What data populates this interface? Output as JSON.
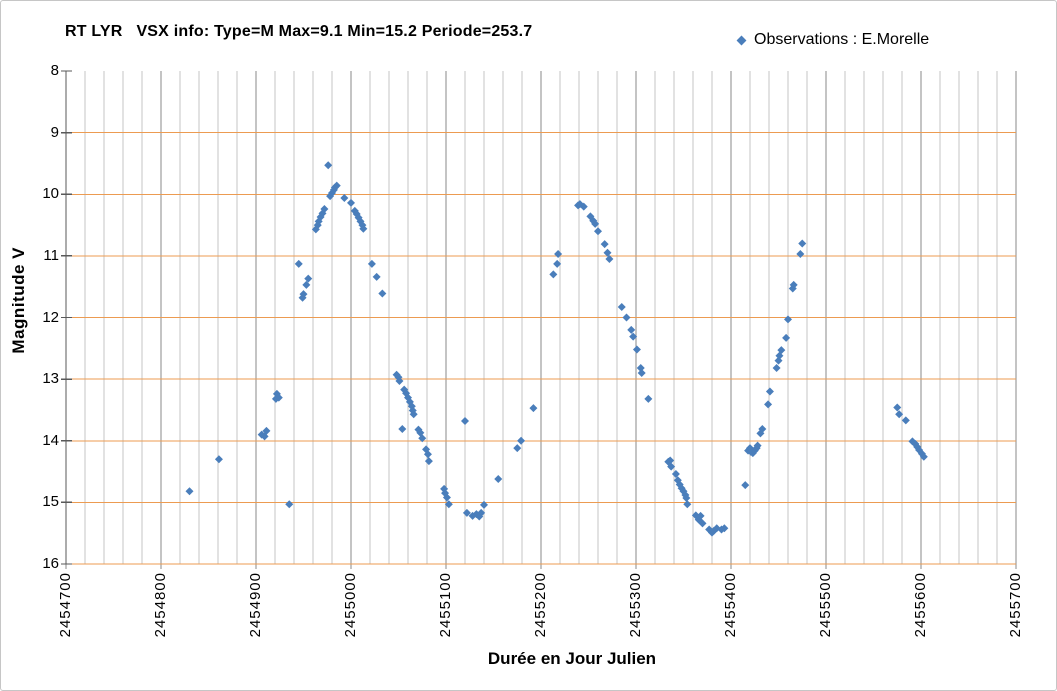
{
  "chart_data": {
    "type": "scatter",
    "title": "RT LYR   VSX info: Type=M Max=9.1 Min=15.2 Periode=253.7",
    "xlabel": "Durée en Jour Julien",
    "ylabel": "Magnitude V",
    "xlim": [
      2454700,
      2455700
    ],
    "ylim": [
      8,
      16
    ],
    "y_axis_direction": "down",
    "x_ticks": [
      2454700,
      2454800,
      2454900,
      2455000,
      2455100,
      2455200,
      2455300,
      2455400,
      2455500,
      2455600,
      2455700
    ],
    "x_minor_step": 20,
    "y_ticks": [
      8,
      9,
      10,
      11,
      12,
      13,
      14,
      15,
      16
    ],
    "grid": {
      "horizontal_color": "#ec9b51",
      "vertical_minor_color": "#c6c6c6",
      "vertical_major_color": "#8a8a8a",
      "axis_color": "#595959"
    },
    "legend": {
      "position": "top-right",
      "label": "Observations : E.Morelle"
    },
    "marker": {
      "shape": "diamond",
      "color": "#4a7ebb",
      "size": 8
    },
    "series": [
      {
        "name": "Observations : E.Morelle",
        "points": [
          [
            2454830,
            14.82
          ],
          [
            2454861,
            14.3
          ],
          [
            2454906,
            13.9
          ],
          [
            2454909,
            13.93
          ],
          [
            2454911,
            13.84
          ],
          [
            2454921,
            13.32
          ],
          [
            2454922,
            13.24
          ],
          [
            2454924,
            13.3
          ],
          [
            2454935,
            15.03
          ],
          [
            2454945,
            11.13
          ],
          [
            2454949,
            11.68
          ],
          [
            2454950,
            11.62
          ],
          [
            2454953,
            11.47
          ],
          [
            2454955,
            11.37
          ],
          [
            2454963,
            10.57
          ],
          [
            2454965,
            10.5
          ],
          [
            2454966,
            10.44
          ],
          [
            2454968,
            10.37
          ],
          [
            2454970,
            10.31
          ],
          [
            2454972,
            10.24
          ],
          [
            2454976,
            9.53
          ],
          [
            2454978,
            10.03
          ],
          [
            2454980,
            9.98
          ],
          [
            2454982,
            9.93
          ],
          [
            2454983,
            9.89
          ],
          [
            2454985,
            9.86
          ],
          [
            2454993,
            10.06
          ],
          [
            2455000,
            10.14
          ],
          [
            2455004,
            10.27
          ],
          [
            2455006,
            10.32
          ],
          [
            2455008,
            10.38
          ],
          [
            2455010,
            10.44
          ],
          [
            2455012,
            10.5
          ],
          [
            2455013,
            10.56
          ],
          [
            2455022,
            11.13
          ],
          [
            2455027,
            11.34
          ],
          [
            2455033,
            11.61
          ],
          [
            2455048,
            12.93
          ],
          [
            2455050,
            12.97
          ],
          [
            2455051,
            13.03
          ],
          [
            2455054,
            13.81
          ],
          [
            2455056,
            13.17
          ],
          [
            2455058,
            13.23
          ],
          [
            2455060,
            13.3
          ],
          [
            2455062,
            13.37
          ],
          [
            2455064,
            13.44
          ],
          [
            2455065,
            13.51
          ],
          [
            2455066,
            13.57
          ],
          [
            2455071,
            13.82
          ],
          [
            2455073,
            13.87
          ],
          [
            2455075,
            13.96
          ],
          [
            2455079,
            14.14
          ],
          [
            2455081,
            14.22
          ],
          [
            2455082,
            14.33
          ],
          [
            2455098,
            14.78
          ],
          [
            2455099,
            14.85
          ],
          [
            2455101,
            14.92
          ],
          [
            2455103,
            15.03
          ],
          [
            2455120,
            13.68
          ],
          [
            2455122,
            15.17
          ],
          [
            2455128,
            15.22
          ],
          [
            2455132,
            15.19
          ],
          [
            2455135,
            15.23
          ],
          [
            2455137,
            15.17
          ],
          [
            2455140,
            15.04
          ],
          [
            2455155,
            14.62
          ],
          [
            2455175,
            14.12
          ],
          [
            2455179,
            14.0
          ],
          [
            2455192,
            13.47
          ],
          [
            2455213,
            11.3
          ],
          [
            2455217,
            11.13
          ],
          [
            2455218,
            10.97
          ],
          [
            2455239,
            10.18
          ],
          [
            2455241,
            10.16
          ],
          [
            2455245,
            10.2
          ],
          [
            2455252,
            10.36
          ],
          [
            2455255,
            10.43
          ],
          [
            2455257,
            10.48
          ],
          [
            2455260,
            10.6
          ],
          [
            2455267,
            10.81
          ],
          [
            2455270,
            10.95
          ],
          [
            2455272,
            11.05
          ],
          [
            2455285,
            11.83
          ],
          [
            2455290,
            12.0
          ],
          [
            2455295,
            12.2
          ],
          [
            2455297,
            12.31
          ],
          [
            2455301,
            12.52
          ],
          [
            2455305,
            12.82
          ],
          [
            2455306,
            12.9
          ],
          [
            2455313,
            13.32
          ],
          [
            2455334,
            14.34
          ],
          [
            2455336,
            14.32
          ],
          [
            2455337,
            14.42
          ],
          [
            2455342,
            14.54
          ],
          [
            2455344,
            14.64
          ],
          [
            2455346,
            14.71
          ],
          [
            2455348,
            14.77
          ],
          [
            2455350,
            14.82
          ],
          [
            2455352,
            14.88
          ],
          [
            2455353,
            14.93
          ],
          [
            2455354,
            15.03
          ],
          [
            2455363,
            15.21
          ],
          [
            2455366,
            15.28
          ],
          [
            2455368,
            15.22
          ],
          [
            2455370,
            15.34
          ],
          [
            2455377,
            15.44
          ],
          [
            2455380,
            15.49
          ],
          [
            2455382,
            15.46
          ],
          [
            2455385,
            15.42
          ],
          [
            2455390,
            15.44
          ],
          [
            2455393,
            15.42
          ],
          [
            2455415,
            14.72
          ],
          [
            2455418,
            14.16
          ],
          [
            2455420,
            14.12
          ],
          [
            2455421,
            14.18
          ],
          [
            2455423,
            14.2
          ],
          [
            2455425,
            14.16
          ],
          [
            2455427,
            14.12
          ],
          [
            2455428,
            14.08
          ],
          [
            2455431,
            13.88
          ],
          [
            2455433,
            13.81
          ],
          [
            2455439,
            13.41
          ],
          [
            2455441,
            13.2
          ],
          [
            2455448,
            12.82
          ],
          [
            2455450,
            12.7
          ],
          [
            2455451,
            12.62
          ],
          [
            2455453,
            12.53
          ],
          [
            2455458,
            12.33
          ],
          [
            2455460,
            12.03
          ],
          [
            2455465,
            11.53
          ],
          [
            2455466,
            11.47
          ],
          [
            2455473,
            10.97
          ],
          [
            2455475,
            10.8
          ],
          [
            2455575,
            13.46
          ],
          [
            2455577,
            13.57
          ],
          [
            2455584,
            13.67
          ],
          [
            2455591,
            14.01
          ],
          [
            2455594,
            14.05
          ],
          [
            2455596,
            14.1
          ],
          [
            2455598,
            14.15
          ],
          [
            2455601,
            14.21
          ],
          [
            2455603,
            14.26
          ]
        ]
      }
    ]
  }
}
